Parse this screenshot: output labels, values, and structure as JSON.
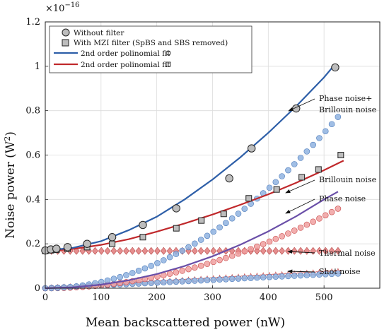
{
  "chart_data": {
    "type": "scatter",
    "xlabel": "Mean backscattered power (nW)",
    "ylabel_main": "Noise power (W",
    "ylabel_sup": "2",
    "ylabel_end": ")",
    "exponent_base": "×10",
    "exponent_power": "−16",
    "xlim": [
      0,
      600
    ],
    "ylim": [
      0,
      1.2
    ],
    "xticks": [
      "0",
      "100",
      "200",
      "300",
      "400",
      "500"
    ],
    "yticks": [
      "0",
      "0.2",
      "0.4",
      "0.6",
      "0.8",
      "1",
      "1.2"
    ],
    "grid": true,
    "legend_position": "top-left",
    "legend": {
      "without_filter": "Without filter",
      "with_mzi": "With MZI filter (SpBS and SBS removed)",
      "fit_circle": "2nd order polinomial fit",
      "fit_square": "2nd order polinomial fit"
    },
    "series": [
      {
        "name": "Without filter",
        "marker": "circle",
        "color": "#bdbdbd",
        "x": [
          0,
          10,
          20,
          40,
          75,
          120,
          175,
          235,
          330,
          370,
          450,
          520
        ],
        "y": [
          0.17,
          0.175,
          0.178,
          0.185,
          0.2,
          0.23,
          0.285,
          0.36,
          0.495,
          0.63,
          0.81,
          0.995
        ]
      },
      {
        "name": "With MZI filter (SpBS and SBS removed)",
        "marker": "square",
        "color": "#bdbdbd",
        "x": [
          0,
          10,
          20,
          40,
          75,
          120,
          175,
          235,
          280,
          320,
          365,
          415,
          460,
          490,
          530
        ],
        "y": [
          0.168,
          0.171,
          0.173,
          0.178,
          0.185,
          0.2,
          0.23,
          0.27,
          0.305,
          0.335,
          0.405,
          0.445,
          0.5,
          0.535,
          0.6
        ]
      },
      {
        "name": "2nd order polinomial fit (circle)",
        "type": "line",
        "color": "#2e5fa8",
        "x": [
          0,
          50,
          100,
          150,
          200,
          250,
          300,
          350,
          400,
          450,
          500,
          520
        ],
        "y": [
          0.17,
          0.182,
          0.212,
          0.262,
          0.322,
          0.4,
          0.49,
          0.59,
          0.7,
          0.82,
          0.95,
          1.01
        ]
      },
      {
        "name": "2nd order polinomial fit (square)",
        "type": "line",
        "color": "#c0282b",
        "x": [
          0,
          50,
          100,
          150,
          200,
          250,
          300,
          350,
          400,
          450,
          500,
          535
        ],
        "y": [
          0.167,
          0.177,
          0.195,
          0.221,
          0.255,
          0.292,
          0.332,
          0.376,
          0.423,
          0.475,
          0.532,
          0.575
        ]
      },
      {
        "name": "Phase noise + Brillouin noise",
        "marker": "circle",
        "color": "#8fb3e0",
        "x_start": 0,
        "x_end": 525,
        "count": 48,
        "coef": 2.8e-06
      },
      {
        "name": "Brillouin noise",
        "type": "line",
        "color": "#6a4fa8",
        "x": [
          0,
          50,
          100,
          150,
          200,
          250,
          300,
          350,
          400,
          450,
          500,
          525
        ],
        "y": [
          0,
          0.004,
          0.016,
          0.036,
          0.064,
          0.1,
          0.144,
          0.196,
          0.256,
          0.324,
          0.4,
          0.435
        ]
      },
      {
        "name": "Phase noise",
        "marker": "circle",
        "color": "#f0a0a0",
        "x_start": 0,
        "x_end": 525,
        "count": 48,
        "coef": 1.3e-06
      },
      {
        "name": "Thermal noise",
        "marker": "diamond",
        "color": "#e07a7a",
        "x_start": 0,
        "x_end": 525,
        "count": 48,
        "const": 0.168
      },
      {
        "name": "Shot noise (blue)",
        "marker": "circle",
        "color": "#8fb3e0",
        "x_start": 0,
        "x_end": 525,
        "count": 48,
        "lin": 0.000125
      },
      {
        "name": "Shot noise (red)",
        "marker": "star",
        "color": "#d06060",
        "x_start": 0,
        "x_end": 525,
        "count": 48,
        "lin": 0.000143
      }
    ],
    "annotations": {
      "phase_brillouin_line1": "Phase noise+",
      "phase_brillouin_line2": "Brillouin noise",
      "brillouin": "Brillouin noise",
      "phase": "Phase noise",
      "thermal": "Thermal noise",
      "shot": "Shot noise"
    }
  }
}
